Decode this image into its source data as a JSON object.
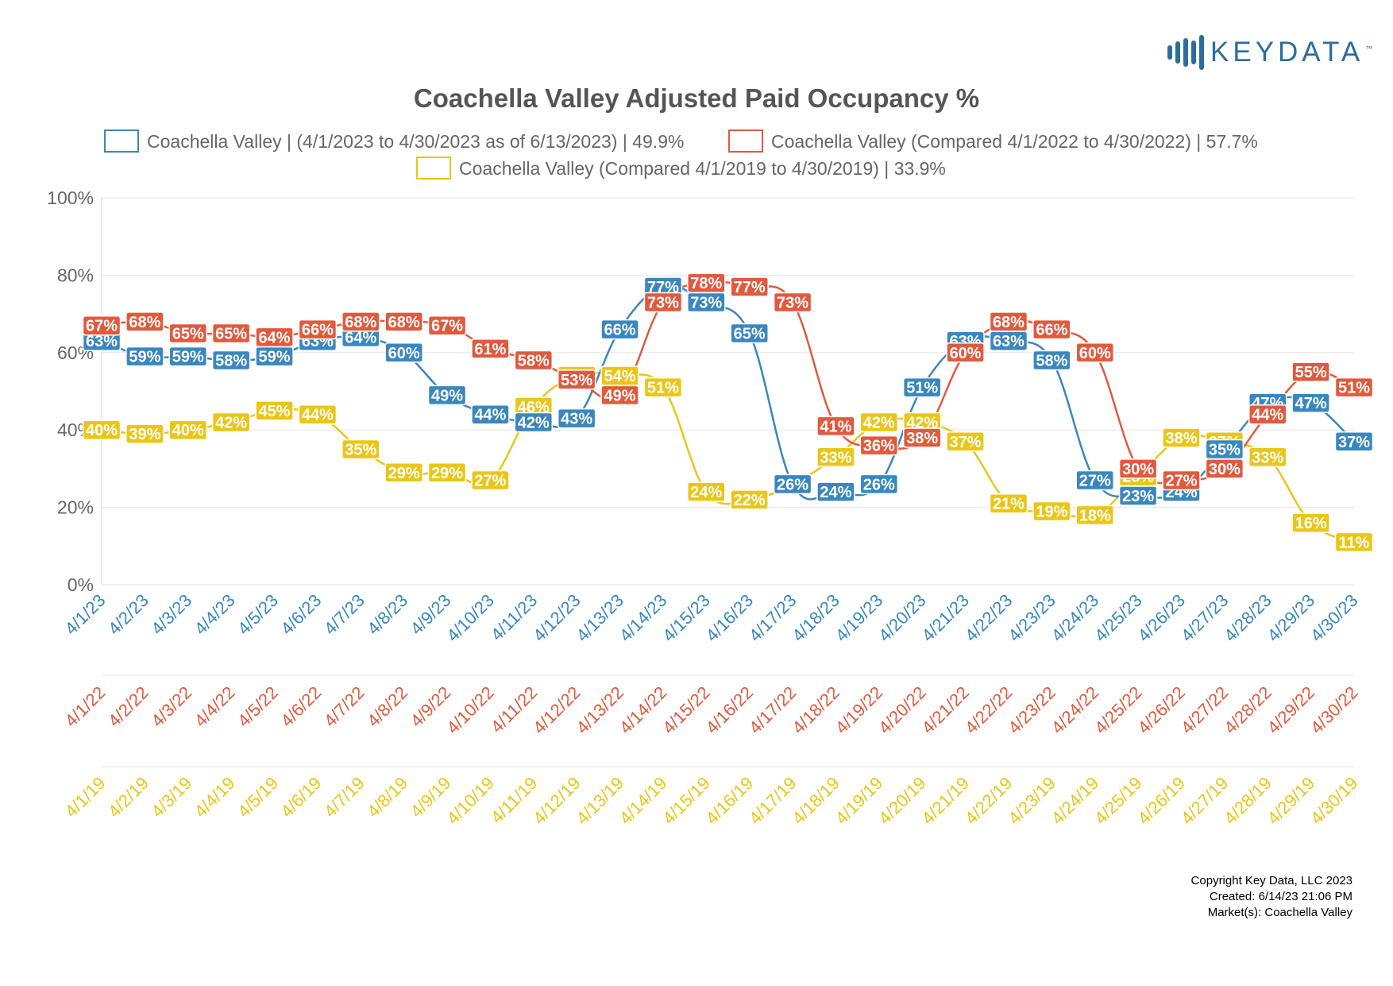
{
  "brand": {
    "name": "KEYDATA",
    "tm": "™"
  },
  "footer": {
    "copyright": "Copyright Key Data, LLC 2023",
    "created": "Created: 6/14/23 21:06 PM",
    "markets": "Market(s):  Coachella Valley"
  },
  "chart_data": {
    "type": "line",
    "title": "Coachella Valley Adjusted Paid Occupancy %",
    "ylim": [
      0,
      100
    ],
    "y_ticks": [
      "0%",
      "20%",
      "40%",
      "60%",
      "80%",
      "100%"
    ],
    "grid": true,
    "legend_position": "top",
    "x_labels_2023": [
      "4/1/23",
      "4/2/23",
      "4/3/23",
      "4/4/23",
      "4/5/23",
      "4/6/23",
      "4/7/23",
      "4/8/23",
      "4/9/23",
      "4/10/23",
      "4/11/23",
      "4/12/23",
      "4/13/23",
      "4/14/23",
      "4/15/23",
      "4/16/23",
      "4/17/23",
      "4/18/23",
      "4/19/23",
      "4/20/23",
      "4/21/23",
      "4/22/23",
      "4/23/23",
      "4/24/23",
      "4/25/23",
      "4/26/23",
      "4/27/23",
      "4/28/23",
      "4/29/23",
      "4/30/23"
    ],
    "x_labels_2022": [
      "4/1/22",
      "4/2/22",
      "4/3/22",
      "4/4/22",
      "4/5/22",
      "4/6/22",
      "4/7/22",
      "4/8/22",
      "4/9/22",
      "4/10/22",
      "4/11/22",
      "4/12/22",
      "4/13/22",
      "4/14/22",
      "4/15/22",
      "4/16/22",
      "4/17/22",
      "4/18/22",
      "4/19/22",
      "4/20/22",
      "4/21/22",
      "4/22/22",
      "4/23/22",
      "4/24/22",
      "4/25/22",
      "4/26/22",
      "4/27/22",
      "4/28/22",
      "4/29/22",
      "4/30/22"
    ],
    "x_labels_2019": [
      "4/1/19",
      "4/2/19",
      "4/3/19",
      "4/4/19",
      "4/5/19",
      "4/6/19",
      "4/7/19",
      "4/8/19",
      "4/9/19",
      "4/10/19",
      "4/11/19",
      "4/12/19",
      "4/13/19",
      "4/14/19",
      "4/15/19",
      "4/16/19",
      "4/17/19",
      "4/18/19",
      "4/19/19",
      "4/20/19",
      "4/21/19",
      "4/22/19",
      "4/23/19",
      "4/24/19",
      "4/25/19",
      "4/26/19",
      "4/27/19",
      "4/28/19",
      "4/29/19",
      "4/30/19"
    ],
    "series": [
      {
        "name": "Coachella Valley | (4/1/2023 to 4/30/2023 as of 6/13/2023) | 49.9%",
        "color": "#3a87bf",
        "values": [
          63,
          59,
          59,
          58,
          59,
          63,
          64,
          60,
          49,
          44,
          42,
          43,
          66,
          77,
          73,
          65,
          26,
          24,
          26,
          51,
          63,
          63,
          58,
          27,
          23,
          24,
          35,
          47,
          47,
          37
        ]
      },
      {
        "name": "Coachella Valley (Compared 4/1/2022 to 4/30/2022) | 57.7%",
        "color": "#e05a3e",
        "values": [
          67,
          68,
          65,
          65,
          64,
          66,
          68,
          68,
          67,
          61,
          58,
          53,
          49,
          73,
          78,
          77,
          73,
          41,
          36,
          38,
          60,
          68,
          66,
          60,
          30,
          27,
          30,
          44,
          55,
          51
        ]
      },
      {
        "name": "Coachella Valley (Compared 4/1/2019 to 4/30/2019) | 33.9%",
        "color": "#eac617",
        "values": [
          40,
          39,
          40,
          42,
          45,
          44,
          35,
          29,
          29,
          27,
          46,
          54,
          54,
          51,
          24,
          22,
          26,
          33,
          42,
          42,
          37,
          21,
          19,
          18,
          28,
          38,
          37,
          33,
          16,
          11
        ]
      }
    ]
  }
}
